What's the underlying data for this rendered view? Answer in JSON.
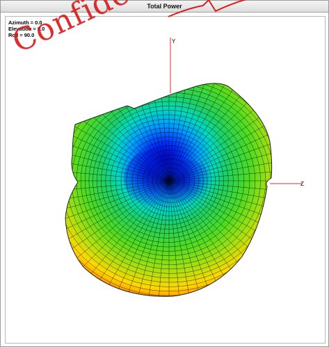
{
  "window": {
    "title": "Total Power"
  },
  "view": {
    "azimuth": "Azimuth = 0.0",
    "elevation": "Elevation = 0.0",
    "roll": "Roll = 90.0"
  },
  "axes": {
    "y_label": "Y",
    "z_label": "Z"
  },
  "watermark": "Confidential",
  "colors": {
    "axis": "#e03030",
    "mesh": "#000000",
    "watermark": "#d81e1e",
    "plot_low": "#0000c8",
    "plot_high": "#ff3000"
  }
}
